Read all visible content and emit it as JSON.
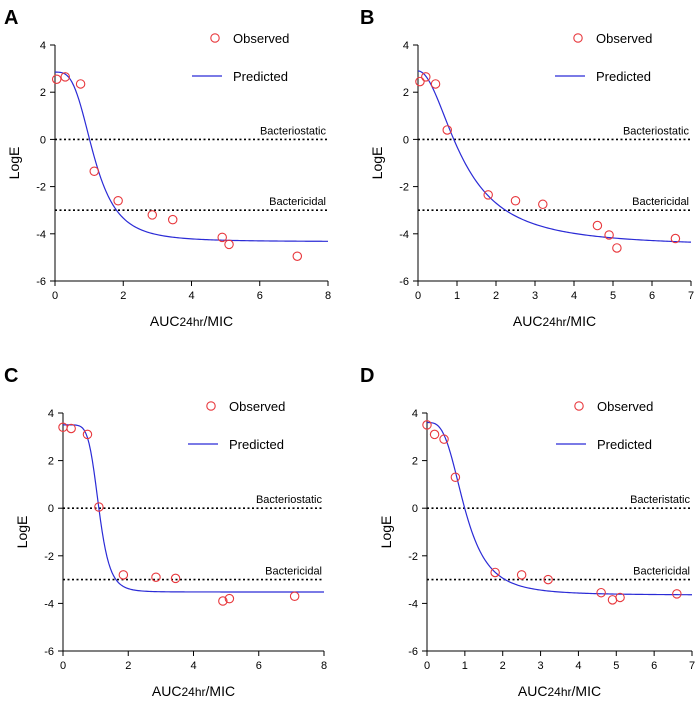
{
  "colors": {
    "observed": "#e8383d",
    "predicted": "#2b2bd6",
    "axis": "#000000",
    "reference": "#000000"
  },
  "chart_data": [
    {
      "type": "scatter+line",
      "panel_label": "A",
      "xlabel": "AUC24hr/MIC",
      "xlabel_main": "AUC",
      "xlabel_sub": "24hr",
      "xlabel_tail": "/MIC",
      "ylabel": "LogE",
      "xlim": [
        0,
        8
      ],
      "ylim": [
        -6,
        4
      ],
      "xticks": [
        0,
        2,
        4,
        6,
        8
      ],
      "yticks": [
        -6,
        -4,
        -2,
        0,
        2,
        4
      ],
      "legend": {
        "observed": "Observed",
        "predicted": "Predicted",
        "position": "top-right"
      },
      "reference_lines": [
        {
          "y": 0,
          "label": "Bacteriostatic"
        },
        {
          "y": -3,
          "label": "Bactericidal"
        }
      ],
      "observed": {
        "x": [
          0.05,
          0.3,
          0.75,
          1.15,
          1.85,
          2.85,
          3.45,
          4.9,
          5.1,
          7.1
        ],
        "y": [
          2.55,
          2.65,
          2.35,
          -1.35,
          -2.6,
          -3.2,
          -3.4,
          -4.15,
          -4.45,
          -4.95
        ]
      },
      "predicted": {
        "model": "sigmoid Emax",
        "e0": 2.85,
        "emin": -4.33,
        "ec50": 1.15,
        "hill": 3.3
      }
    },
    {
      "type": "scatter+line",
      "panel_label": "B",
      "xlabel": "AUC24hr/MIC",
      "xlabel_main": "AUC",
      "xlabel_sub": "24hr",
      "xlabel_tail": "/MIC",
      "ylabel": "LogE",
      "xlim": [
        0,
        7
      ],
      "ylim": [
        -6,
        4
      ],
      "xticks": [
        0,
        1,
        2,
        3,
        4,
        5,
        6,
        7
      ],
      "yticks": [
        -6,
        -4,
        -2,
        0,
        2,
        4
      ],
      "legend": {
        "observed": "Observed",
        "predicted": "Predicted",
        "position": "top-right"
      },
      "reference_lines": [
        {
          "y": 0,
          "label": "Bacteriostatic"
        },
        {
          "y": -3,
          "label": "Bactericidal"
        }
      ],
      "observed": {
        "x": [
          0.05,
          0.2,
          0.45,
          0.75,
          1.8,
          2.5,
          3.2,
          4.6,
          4.9,
          5.1,
          6.6
        ],
        "y": [
          2.45,
          2.65,
          2.35,
          0.4,
          -2.35,
          -2.6,
          -2.75,
          -3.65,
          -4.05,
          -4.6,
          -4.2
        ]
      },
      "predicted": {
        "model": "sigmoid Emax",
        "e0": 2.9,
        "emin": -4.55,
        "ec50": 1.15,
        "hill": 2.0
      }
    },
    {
      "type": "scatter+line",
      "panel_label": "C",
      "xlabel": "AUC24hr/MIC",
      "xlabel_main": "AUC",
      "xlabel_sub": "24hr",
      "xlabel_tail": "/MIC",
      "ylabel": "LogE",
      "xlim": [
        0,
        8
      ],
      "ylim": [
        -6,
        4
      ],
      "xticks": [
        0,
        2,
        4,
        6,
        8
      ],
      "yticks": [
        -6,
        -4,
        -2,
        0,
        2,
        4
      ],
      "legend": {
        "observed": "Observed",
        "predicted": "Predicted",
        "position": "top-right"
      },
      "reference_lines": [
        {
          "y": 0,
          "label": "Bacteriostatic"
        },
        {
          "y": -3,
          "label": "Bactericidal"
        }
      ],
      "observed": {
        "x": [
          0.0,
          0.25,
          0.75,
          1.1,
          1.85,
          2.85,
          3.45,
          4.9,
          5.1,
          7.1
        ],
        "y": [
          3.4,
          3.35,
          3.1,
          0.05,
          -2.8,
          -2.9,
          -2.95,
          -3.9,
          -3.8,
          -3.7
        ]
      },
      "predicted": {
        "model": "sigmoid Emax",
        "e0": 3.5,
        "emin": -3.52,
        "ec50": 1.1,
        "hill": 6.5
      }
    },
    {
      "type": "scatter+line",
      "panel_label": "D",
      "xlabel": "AUC24hr/MIC",
      "xlabel_main": "AUC",
      "xlabel_sub": "24hr",
      "xlabel_tail": "/MIC",
      "ylabel": "LogE",
      "xlim": [
        0,
        7
      ],
      "ylim": [
        -6,
        4
      ],
      "xticks": [
        0,
        1,
        2,
        3,
        4,
        5,
        6,
        7
      ],
      "yticks": [
        -6,
        -4,
        -2,
        0,
        2,
        4
      ],
      "legend": {
        "observed": "Observed",
        "predicted": "Predicted",
        "position": "top-right"
      },
      "reference_lines": [
        {
          "y": 0,
          "label": "Bacteristatic"
        },
        {
          "y": -3,
          "label": "Bactericidal"
        }
      ],
      "observed": {
        "x": [
          0.0,
          0.2,
          0.45,
          0.75,
          1.8,
          2.5,
          3.2,
          4.6,
          4.9,
          5.1,
          6.6
        ],
        "y": [
          3.5,
          3.1,
          2.9,
          1.3,
          -2.7,
          -2.8,
          -3.0,
          -3.55,
          -3.85,
          -3.75,
          -3.6
        ]
      },
      "predicted": {
        "model": "sigmoid Emax",
        "e0": 3.6,
        "emin": -3.65,
        "ec50": 1.0,
        "hill": 3.2
      }
    }
  ]
}
